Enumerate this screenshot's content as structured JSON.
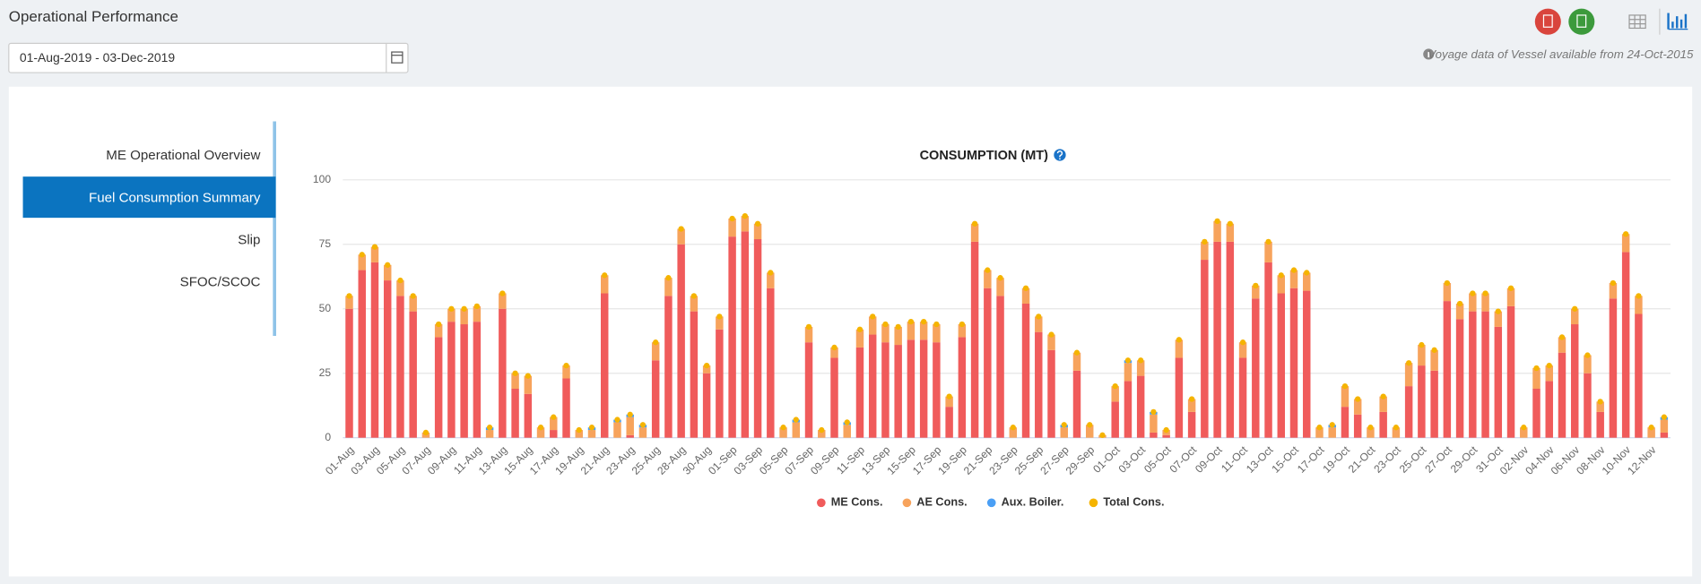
{
  "header": {
    "title": "Operational Performance",
    "date_range": "01-Aug-2019 - 03-Dec-2019",
    "note": "Voyage data of Vessel available from 24-Oct-2015"
  },
  "menu": [
    "ME Operational Overview",
    "Fuel Consumption Summary",
    "Slip",
    "SFOC/SCOC"
  ],
  "chart_data": {
    "type": "bar",
    "title": "CONSUMPTION (MT)",
    "categories": [
      "01-Aug",
      null,
      "03-Aug",
      null,
      "05-Aug",
      null,
      "07-Aug",
      null,
      "09-Aug",
      null,
      "11-Aug",
      null,
      "13-Aug",
      null,
      "15-Aug",
      null,
      "17-Aug",
      null,
      "19-Aug",
      null,
      "21-Aug",
      null,
      "23-Aug",
      null,
      "25-Aug",
      null,
      "28-Aug",
      null,
      "30-Aug",
      null,
      "01-Sep",
      null,
      "03-Sep",
      null,
      "05-Sep",
      null,
      "07-Sep",
      null,
      "09-Sep",
      null,
      "11-Sep",
      null,
      "13-Sep",
      null,
      "15-Sep",
      null,
      "17-Sep",
      null,
      "19-Sep",
      null,
      "21-Sep",
      null,
      "23-Sep",
      null,
      "25-Sep",
      null,
      "27-Sep",
      null,
      "29-Sep",
      null,
      "01-Oct",
      null,
      "03-Oct",
      null,
      "05-Oct",
      null,
      "07-Oct",
      null,
      "09-Oct",
      null,
      "11-Oct",
      null,
      "13-Oct",
      null,
      "15-Oct",
      null,
      "17-Oct",
      null,
      "19-Oct",
      null,
      "21-Oct",
      null,
      "23-Oct",
      null,
      "25-Oct",
      null,
      "27-Oct",
      null,
      "29-Oct",
      null,
      "31-Oct",
      null,
      "02-Nov",
      null,
      "04-Nov",
      null,
      "06-Nov",
      null,
      "08-Nov",
      null,
      "10-Nov",
      null,
      "12-Nov",
      null
    ],
    "series": [
      {
        "name": "ME Cons.",
        "color": "#f05b5b",
        "stacked": true,
        "values": [
          50,
          65,
          68,
          61,
          55,
          49,
          0,
          39,
          45,
          44,
          45,
          0,
          50,
          19,
          17,
          0,
          3,
          23,
          0,
          0,
          56,
          0,
          1,
          0,
          30,
          55,
          75,
          49,
          25,
          42,
          78,
          80,
          77,
          58,
          0,
          0,
          37,
          0,
          31,
          0,
          35,
          40,
          37,
          36,
          38,
          38,
          37,
          12,
          39,
          76,
          58,
          55,
          0,
          52,
          41,
          34,
          0,
          26,
          0,
          0,
          14,
          22,
          24,
          2,
          1,
          31,
          10,
          69,
          76,
          76,
          31,
          54,
          68,
          56,
          58,
          57,
          0,
          0,
          12,
          9,
          0,
          10,
          0,
          20,
          28,
          26,
          53,
          46,
          49,
          49,
          43,
          51,
          0,
          19,
          22,
          33,
          44,
          25,
          10,
          54,
          72,
          48,
          0,
          2
        ]
      },
      {
        "name": "AE Cons.",
        "color": "#f7a35c",
        "stacked": true,
        "values": [
          5,
          6,
          6,
          6,
          6,
          6,
          2,
          5,
          5,
          6,
          6,
          3,
          6,
          6,
          7,
          4,
          5,
          5,
          3,
          3,
          7,
          6,
          7,
          4,
          7,
          7,
          6,
          6,
          3,
          5,
          7,
          6,
          6,
          6,
          4,
          6,
          6,
          3,
          4,
          5,
          7,
          7,
          7,
          7,
          7,
          7,
          7,
          4,
          5,
          7,
          7,
          7,
          4,
          6,
          6,
          6,
          4,
          7,
          5,
          1,
          6,
          7,
          6,
          7,
          2,
          7,
          5,
          7,
          8,
          7,
          6,
          5,
          8,
          7,
          7,
          7,
          4,
          4,
          8,
          6,
          4,
          6,
          4,
          9,
          8,
          8,
          7,
          6,
          7,
          7,
          6,
          7,
          4,
          8,
          6,
          6,
          6,
          7,
          4,
          6,
          7,
          7,
          4,
          5
        ]
      },
      {
        "name": "Aux. Boiler.",
        "color": "#4a9ff5",
        "stacked": true,
        "values": [
          0,
          0,
          0,
          0,
          0,
          0,
          0,
          0,
          0,
          0,
          0,
          1,
          0,
          0,
          0,
          0,
          0,
          0,
          0,
          1,
          0,
          1,
          1,
          1,
          0,
          0,
          0,
          0,
          0,
          0,
          0,
          0,
          0,
          0,
          0,
          1,
          0,
          0,
          0,
          1,
          0,
          0,
          0,
          0,
          0,
          0,
          0,
          0,
          0,
          0,
          0,
          0,
          0,
          0,
          0,
          0,
          1,
          0,
          0,
          0,
          0,
          1,
          0,
          1,
          0,
          0,
          0,
          0,
          0,
          0,
          0,
          0,
          0,
          0,
          0,
          0,
          0,
          1,
          0,
          0,
          0,
          0,
          0,
          0,
          0,
          0,
          0,
          0,
          0,
          0,
          0,
          0,
          0,
          0,
          0,
          0,
          0,
          0,
          0,
          0,
          0,
          0,
          0,
          1
        ]
      },
      {
        "name": "Total Cons.",
        "color": "#f5b400",
        "stacked": false,
        "values": [
          55,
          71,
          74,
          67,
          61,
          55,
          2,
          44,
          50,
          50,
          51,
          4,
          56,
          25,
          24,
          4,
          8,
          28,
          3,
          4,
          63,
          7,
          9,
          5,
          37,
          62,
          81,
          55,
          28,
          47,
          85,
          86,
          83,
          64,
          4,
          7,
          43,
          3,
          35,
          6,
          42,
          47,
          44,
          43,
          45,
          45,
          44,
          16,
          44,
          83,
          65,
          62,
          4,
          58,
          47,
          40,
          5,
          33,
          5,
          1,
          20,
          30,
          30,
          10,
          3,
          38,
          15,
          76,
          84,
          83,
          37,
          59,
          76,
          63,
          65,
          64,
          4,
          5,
          20,
          15,
          4,
          16,
          4,
          29,
          36,
          34,
          60,
          52,
          56,
          56,
          49,
          58,
          4,
          27,
          28,
          39,
          50,
          32,
          14,
          60,
          79,
          55,
          4,
          8
        ]
      }
    ],
    "ylim": [
      0,
      100
    ],
    "yticks": [
      0,
      25,
      50,
      75,
      100
    ],
    "grid": true,
    "legend": "bottom"
  }
}
